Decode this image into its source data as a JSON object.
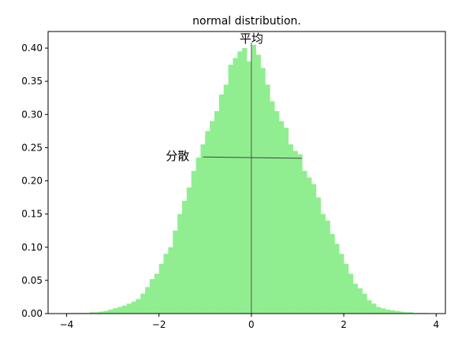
{
  "chart_data": {
    "type": "bar",
    "title": "normal distribution.",
    "xlabel": "",
    "ylabel": "",
    "xlim": [
      -4.4,
      4.2
    ],
    "ylim": [
      0,
      0.425
    ],
    "xticks": [
      -4,
      -2,
      0,
      2,
      4
    ],
    "xtick_labels": [
      "−4",
      "−2",
      "0",
      "2",
      "4"
    ],
    "yticks": [
      0,
      0.05,
      0.1,
      0.15,
      0.2,
      0.25,
      0.3,
      0.35,
      0.4
    ],
    "ytick_labels": [
      "0.00",
      "0.05",
      "0.10",
      "0.15",
      "0.20",
      "0.25",
      "0.30",
      "0.35",
      "0.40"
    ],
    "grid": false,
    "bar_color": "#90EE90",
    "bin_width": 0.1,
    "bin_starts": [
      -4.0,
      -3.9,
      -3.8,
      -3.7,
      -3.6,
      -3.5,
      -3.4,
      -3.3,
      -3.2,
      -3.1,
      -3.0,
      -2.9,
      -2.8,
      -2.7,
      -2.6,
      -2.5,
      -2.4,
      -2.3,
      -2.2,
      -2.1,
      -2.0,
      -1.9,
      -1.8,
      -1.7,
      -1.6,
      -1.5,
      -1.4,
      -1.3,
      -1.2,
      -1.1,
      -1.0,
      -0.9,
      -0.8,
      -0.7,
      -0.6,
      -0.5,
      -0.4,
      -0.3,
      -0.2,
      -0.1,
      0.0,
      0.1,
      0.2,
      0.3,
      0.4,
      0.5,
      0.6,
      0.7,
      0.8,
      0.9,
      1.0,
      1.1,
      1.2,
      1.3,
      1.4,
      1.5,
      1.6,
      1.7,
      1.8,
      1.9,
      2.0,
      2.1,
      2.2,
      2.3,
      2.4,
      2.5,
      2.6,
      2.7,
      2.8,
      2.9,
      3.0,
      3.1,
      3.2,
      3.3,
      3.4,
      3.5,
      3.6,
      3.7
    ],
    "values": [
      0.001,
      0.001,
      0.001,
      0.001,
      0.001,
      0.002,
      0.002,
      0.003,
      0.004,
      0.006,
      0.008,
      0.01,
      0.012,
      0.015,
      0.018,
      0.022,
      0.03,
      0.04,
      0.052,
      0.06,
      0.075,
      0.09,
      0.1,
      0.125,
      0.15,
      0.17,
      0.19,
      0.215,
      0.235,
      0.255,
      0.275,
      0.29,
      0.305,
      0.33,
      0.345,
      0.375,
      0.385,
      0.395,
      0.4,
      0.38,
      0.405,
      0.39,
      0.37,
      0.345,
      0.32,
      0.305,
      0.29,
      0.28,
      0.255,
      0.245,
      0.24,
      0.215,
      0.205,
      0.195,
      0.175,
      0.15,
      0.14,
      0.12,
      0.105,
      0.09,
      0.075,
      0.06,
      0.045,
      0.038,
      0.03,
      0.02,
      0.015,
      0.01,
      0.008,
      0.006,
      0.005,
      0.004,
      0.003,
      0.002,
      0.002,
      0.001,
      0.001,
      0.001
    ],
    "annotations": {
      "mean": {
        "label": "平均",
        "x": 0
      },
      "variance": {
        "label": "分散",
        "x_start": -1.05,
        "x_end": 1.1,
        "y_start": 0.236,
        "y_end": 0.234
      }
    }
  }
}
